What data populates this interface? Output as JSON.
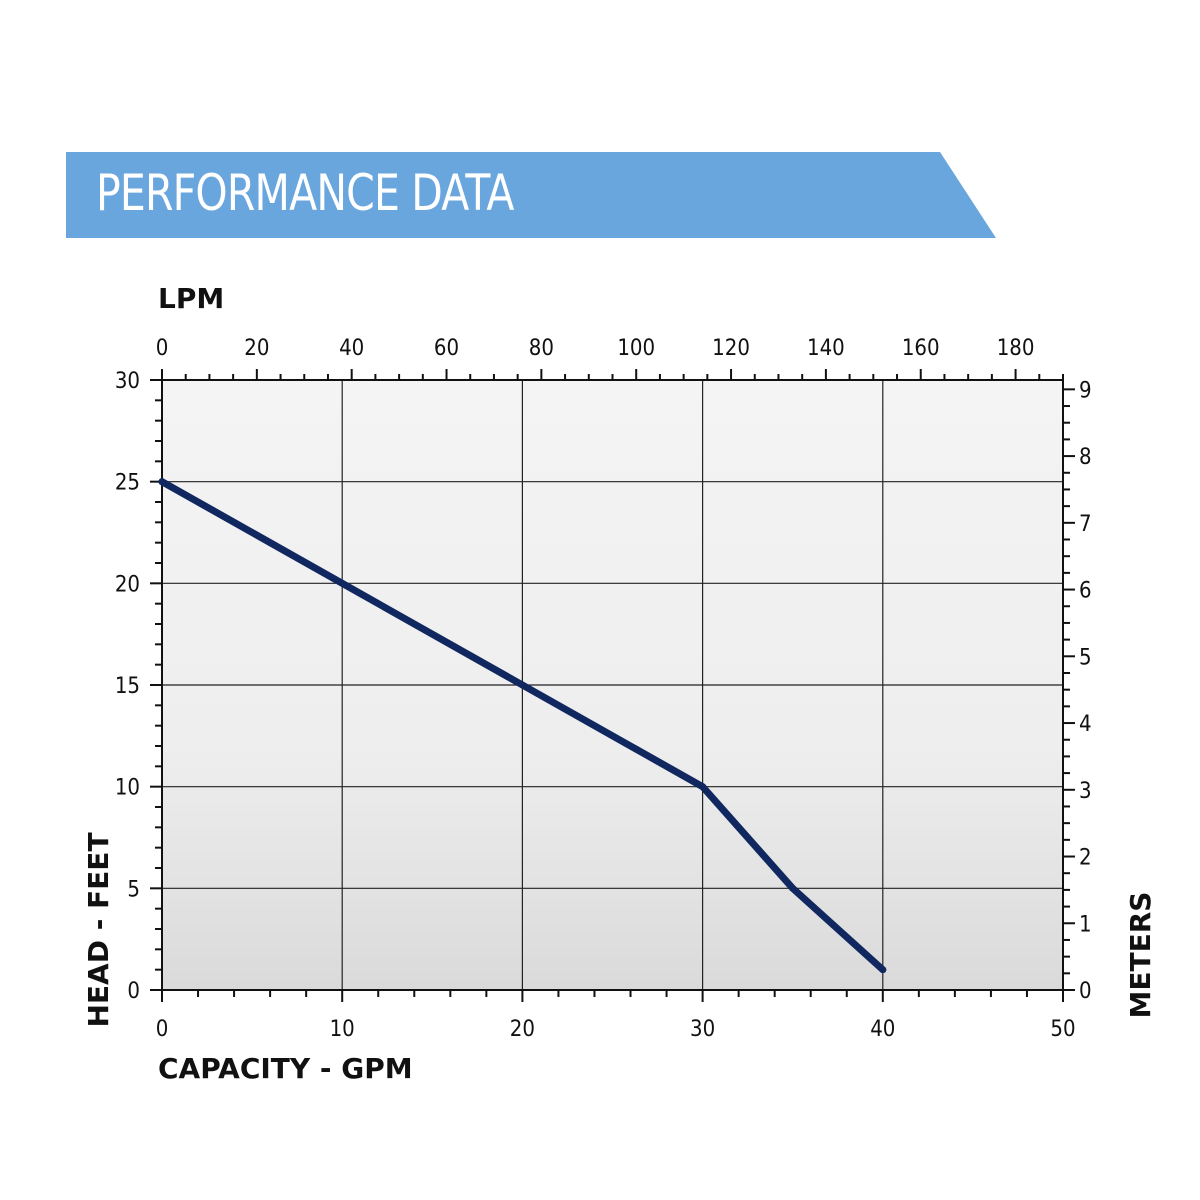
{
  "banner": {
    "title": "PERFORMANCE DATA",
    "color": "#6aa6de"
  },
  "chart_data": {
    "type": "line",
    "title": "PERFORMANCE DATA",
    "xlabel": "CAPACITY - GPM",
    "ylabel": "HEAD - FEET",
    "x2label": "LPM",
    "y2label": "METERS",
    "xlim": [
      0,
      50
    ],
    "ylim": [
      0,
      30
    ],
    "x2lim": [
      0,
      190
    ],
    "y2lim": [
      0,
      9.14
    ],
    "x_ticks": [
      0,
      10,
      20,
      30,
      40,
      50
    ],
    "y_ticks": [
      0,
      5,
      10,
      15,
      20,
      25,
      30
    ],
    "x2_ticks": [
      0,
      20,
      40,
      60,
      80,
      100,
      120,
      140,
      160,
      180
    ],
    "y2_ticks": [
      0,
      1,
      2,
      3,
      4,
      5,
      6,
      7,
      8,
      9
    ],
    "grid": true,
    "series": [
      {
        "x": [
          0,
          10,
          20,
          30,
          35,
          40
        ],
        "y": [
          25,
          20,
          15,
          10,
          5,
          1
        ],
        "color": "#10285f"
      }
    ]
  }
}
